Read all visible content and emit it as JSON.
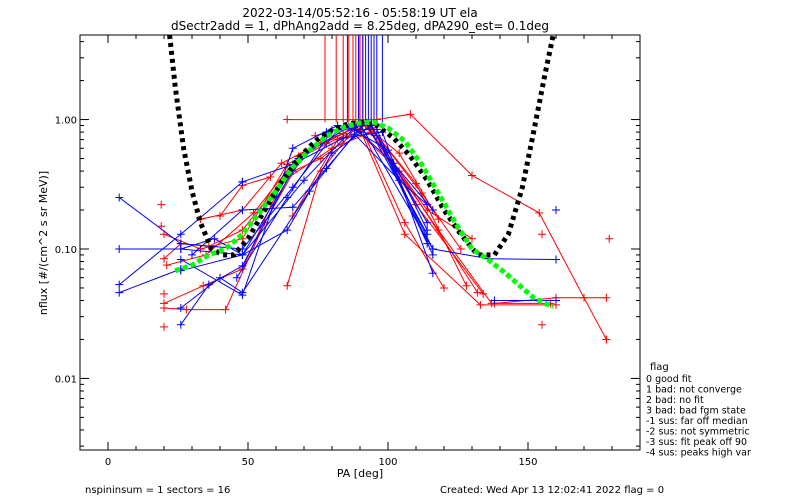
{
  "chart_data": {
    "type": "line",
    "title_line1": "2022-03-14/05:52:16 - 05:58:19 UT ela",
    "title_line2": "dSectr2add = 1, dPhAng2add = 8.25deg, dPA290_est=   0.1deg",
    "xlabel": "PA [deg]",
    "ylabel": "nflux [#/(cm^2 s sr MeV)]",
    "xlim": [
      -10,
      190
    ],
    "ylim": [
      0.0028,
      4.5
    ],
    "y_scale": "log",
    "x_ticks": [
      {
        "value": 0,
        "label": "0"
      },
      {
        "value": 50,
        "label": "50"
      },
      {
        "value": 100,
        "label": "100"
      },
      {
        "value": 150,
        "label": "150"
      }
    ],
    "y_ticks": [
      {
        "value": 1.0,
        "label": "1.00"
      },
      {
        "value": 0.1,
        "label": "0.10"
      },
      {
        "value": 0.01,
        "label": "0.01"
      }
    ],
    "colors": {
      "red": "#ff0000",
      "blue": "#0000ff",
      "green": "#00ff00",
      "black": "#000000"
    },
    "legend": {
      "placement": "right",
      "title": "flag",
      "items": [
        " 0 good fit",
        " 1 bad: not converge",
        " 2 bad: no fit",
        " 3 bad: bad fgm state",
        "-1 sus: far off median",
        "-2 sus: not symmetric",
        "-3 sus: fit peak off 90",
        "-4 sus: peaks high var"
      ]
    },
    "footer": {
      "left": "nspininsum =  1  sectors = 16",
      "right": "Created: Wed Apr 13 12:02:41 2022   flag = 0"
    },
    "vertical_markers": {
      "red_x": [
        77.5,
        81.5,
        84,
        86,
        87.5,
        88.5,
        89.5,
        90,
        91
      ],
      "blue_x": [
        85.5,
        89.5,
        91,
        92,
        93,
        94,
        95,
        96,
        98
      ],
      "y_from": 0.95,
      "y_to": 4.5
    },
    "series": [
      {
        "color": "red",
        "points": [
          [
            20,
            0.084
          ],
          [
            26,
            0.11
          ],
          [
            36,
            0.105
          ],
          [
            48,
            0.14
          ],
          [
            64,
            0.38
          ],
          [
            76,
            0.5
          ],
          [
            90,
            0.84
          ],
          [
            106,
            0.13
          ],
          [
            133,
            0.037
          ],
          [
            160,
            0.037
          ]
        ]
      },
      {
        "color": "red",
        "points": [
          [
            20,
            0.13
          ],
          [
            33,
            0.1
          ],
          [
            48,
            0.12
          ],
          [
            64,
            0.45
          ],
          [
            78,
            0.65
          ],
          [
            92,
            0.9
          ],
          [
            118,
            0.14
          ],
          [
            137,
            0.038
          ],
          [
            158,
            0.038
          ]
        ]
      },
      {
        "color": "red",
        "points": [
          [
            20,
            0.035
          ],
          [
            28,
            0.034
          ],
          [
            42,
            0.034
          ],
          [
            56,
            0.16
          ],
          [
            70,
            0.55
          ],
          [
            88,
            0.86
          ],
          [
            104,
            0.4
          ],
          [
            132,
            0.046
          ]
        ]
      },
      {
        "color": "red",
        "points": [
          [
            20,
            0.038
          ],
          [
            34,
            0.052
          ],
          [
            48,
            0.07
          ],
          [
            62,
            0.33
          ],
          [
            80,
            0.6
          ],
          [
            94,
            0.8
          ],
          [
            114,
            0.2
          ],
          [
            130,
            0.12
          ]
        ]
      },
      {
        "color": "red",
        "points": [
          [
            21,
            0.075
          ],
          [
            35,
            0.09
          ],
          [
            52,
            0.19
          ],
          [
            68,
            0.52
          ],
          [
            84,
            0.78
          ],
          [
            92,
            0.95
          ],
          [
            110,
            0.22
          ],
          [
            134,
            0.045
          ]
        ]
      },
      {
        "color": "red",
        "points": [
          [
            33,
            0.17
          ],
          [
            48,
            0.2
          ],
          [
            62,
            0.46
          ],
          [
            76,
            0.66
          ],
          [
            90,
            0.9
          ],
          [
            106,
            0.16
          ],
          [
            120,
            0.05
          ]
        ]
      },
      {
        "color": "red",
        "points": [
          [
            40,
            0.18
          ],
          [
            48,
            0.31
          ],
          [
            58,
            0.36
          ]
        ]
      },
      {
        "color": "red",
        "points": [
          [
            64,
            1.0
          ],
          [
            96,
            1.0
          ],
          [
            108,
            1.1
          ],
          [
            130,
            0.37
          ],
          [
            154,
            0.19
          ],
          [
            170,
            0.042
          ],
          [
            178,
            0.02
          ]
        ]
      },
      {
        "color": "red",
        "points": [
          [
            74,
            0.75
          ],
          [
            92,
            0.97
          ],
          [
            110,
            0.32
          ],
          [
            128,
            0.052
          ]
        ]
      },
      {
        "color": "red",
        "points": [
          [
            64,
            0.052
          ],
          [
            76,
            0.4
          ],
          [
            90,
            0.96
          ],
          [
            104,
            0.55
          ],
          [
            118,
            0.17
          ]
        ]
      },
      {
        "color": "red",
        "points": [
          [
            66,
            0.18
          ],
          [
            82,
            0.7
          ],
          [
            94,
            0.86
          ],
          [
            112,
            0.27
          ],
          [
            126,
            0.1
          ]
        ]
      },
      {
        "color": "red",
        "points": [
          [
            138,
            0.038
          ],
          [
            160,
            0.042
          ],
          [
            178,
            0.042
          ]
        ]
      },
      {
        "color": "blue",
        "points": [
          [
            4,
            0.1
          ],
          [
            26,
            0.1
          ],
          [
            48,
            0.09
          ],
          [
            66,
            0.4
          ],
          [
            78,
            0.8
          ],
          [
            90,
            0.92
          ],
          [
            116,
            0.1
          ],
          [
            136,
            0.084
          ],
          [
            160,
            0.083
          ]
        ]
      },
      {
        "color": "blue",
        "points": [
          [
            4,
            0.25
          ],
          [
            26,
            0.11
          ],
          [
            48,
            0.1
          ],
          [
            66,
            0.3
          ],
          [
            82,
            0.83
          ],
          [
            96,
            0.84
          ],
          [
            116,
            0.09
          ]
        ]
      },
      {
        "color": "blue",
        "points": [
          [
            4,
            0.053
          ],
          [
            26,
            0.13
          ],
          [
            48,
            0.33
          ],
          [
            66,
            0.45
          ],
          [
            84,
            0.72
          ],
          [
            98,
            0.8
          ],
          [
            116,
            0.065
          ]
        ]
      },
      {
        "color": "blue",
        "points": [
          [
            26,
            0.083
          ],
          [
            48,
            0.044
          ],
          [
            66,
            0.6
          ],
          [
            82,
            0.9
          ],
          [
            96,
            0.75
          ],
          [
            114,
            0.11
          ]
        ]
      },
      {
        "color": "blue",
        "points": [
          [
            26,
            0.026
          ],
          [
            36,
            0.053
          ],
          [
            48,
            0.074
          ],
          [
            68,
            0.5
          ],
          [
            86,
            0.88
          ],
          [
            100,
            0.58
          ],
          [
            114,
            0.14
          ]
        ]
      },
      {
        "color": "blue",
        "points": [
          [
            26,
            0.1
          ],
          [
            38,
            0.12
          ],
          [
            48,
            0.09
          ],
          [
            70,
            0.34
          ],
          [
            88,
            0.87
          ],
          [
            102,
            0.46
          ],
          [
            116,
            0.2
          ]
        ]
      },
      {
        "color": "blue",
        "points": [
          [
            26,
            0.035
          ],
          [
            40,
            0.06
          ],
          [
            48,
            0.046
          ],
          [
            72,
            0.28
          ],
          [
            88,
            0.77
          ],
          [
            104,
            0.34
          ],
          [
            114,
            0.22
          ]
        ]
      },
      {
        "color": "blue",
        "points": [
          [
            26,
            0.068
          ],
          [
            48,
            0.09
          ],
          [
            64,
            0.14
          ],
          [
            80,
            0.55
          ],
          [
            94,
            0.9
          ],
          [
            114,
            0.16
          ]
        ]
      },
      {
        "color": "blue",
        "points": [
          [
            30,
            0.09
          ],
          [
            48,
            0.2
          ],
          [
            66,
            0.21
          ],
          [
            78,
            0.42
          ],
          [
            92,
            0.95
          ],
          [
            114,
            0.13
          ]
        ]
      },
      {
        "color": "blue",
        "points": [
          [
            46,
            0.06
          ],
          [
            64,
            0.25
          ],
          [
            80,
            0.83
          ],
          [
            94,
            0.92
          ],
          [
            116,
            0.1
          ]
        ]
      },
      {
        "color": "blue",
        "points": [
          [
            138,
            0.04
          ],
          [
            160,
            0.04
          ]
        ]
      },
      {
        "color": "blue",
        "points": [
          [
            4,
            0.046
          ],
          [
            26,
            0.07
          ]
        ]
      }
    ],
    "scatter_points": [
      {
        "color": "red",
        "x": 19,
        "y": 0.22
      },
      {
        "color": "red",
        "x": 19,
        "y": 0.15
      },
      {
        "color": "red",
        "x": 20,
        "y": 0.025
      },
      {
        "color": "red",
        "x": 20,
        "y": 0.045
      },
      {
        "color": "red",
        "x": 155,
        "y": 0.13
      },
      {
        "color": "red",
        "x": 155,
        "y": 0.026
      },
      {
        "color": "red",
        "x": 179,
        "y": 0.12
      },
      {
        "color": "red",
        "x": 178,
        "y": 0.02
      },
      {
        "color": "blue",
        "x": 160,
        "y": 0.2
      },
      {
        "color": "blue",
        "x": 48,
        "y": 0.33
      }
    ],
    "fit_black_dotted": [
      [
        22,
        4.5
      ],
      [
        24,
        1.8
      ],
      [
        27,
        0.6
      ],
      [
        30,
        0.28
      ],
      [
        33,
        0.16
      ],
      [
        37,
        0.1
      ],
      [
        41,
        0.09
      ],
      [
        45,
        0.09
      ],
      [
        50,
        0.12
      ],
      [
        56,
        0.2
      ],
      [
        62,
        0.33
      ],
      [
        68,
        0.5
      ],
      [
        74,
        0.68
      ],
      [
        80,
        0.83
      ],
      [
        86,
        0.93
      ],
      [
        91,
        0.95
      ],
      [
        96,
        0.9
      ],
      [
        102,
        0.72
      ],
      [
        108,
        0.52
      ],
      [
        114,
        0.34
      ],
      [
        120,
        0.2
      ],
      [
        126,
        0.13
      ],
      [
        132,
        0.09
      ],
      [
        138,
        0.09
      ],
      [
        143,
        0.13
      ],
      [
        148,
        0.3
      ],
      [
        152,
        0.8
      ],
      [
        156,
        2.2
      ],
      [
        159,
        4.5
      ]
    ],
    "fit_green_dotted": [
      [
        24,
        0.068
      ],
      [
        30,
        0.075
      ],
      [
        36,
        0.09
      ],
      [
        42,
        0.1
      ],
      [
        48,
        0.13
      ],
      [
        54,
        0.19
      ],
      [
        60,
        0.28
      ],
      [
        66,
        0.43
      ],
      [
        72,
        0.58
      ],
      [
        78,
        0.74
      ],
      [
        84,
        0.87
      ],
      [
        90,
        0.94
      ],
      [
        95,
        0.95
      ],
      [
        100,
        0.86
      ],
      [
        106,
        0.68
      ],
      [
        112,
        0.45
      ],
      [
        118,
        0.27
      ],
      [
        124,
        0.16
      ],
      [
        130,
        0.1
      ],
      [
        136,
        0.082
      ],
      [
        142,
        0.065
      ],
      [
        148,
        0.05
      ],
      [
        152,
        0.042
      ],
      [
        156,
        0.038
      ],
      [
        159,
        0.036
      ]
    ]
  }
}
